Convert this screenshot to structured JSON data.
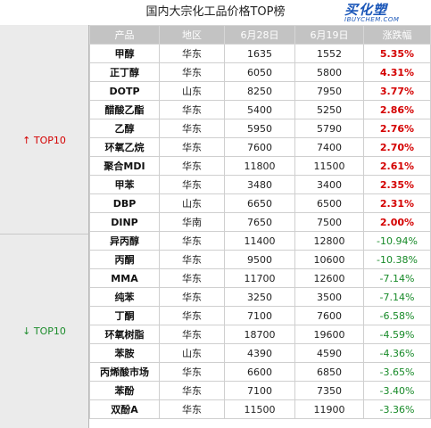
{
  "title": "国内大宗化工品价格TOP榜",
  "logo": {
    "main": "买化塑",
    "sub": "IBUYCHEM.COM"
  },
  "headers": [
    "产品",
    "地区",
    "6月28日",
    "6月19日",
    "涨跌幅"
  ],
  "groups": {
    "up_label": "TOP10",
    "up_arrow": "↑",
    "down_label": "TOP10",
    "down_arrow": "↓"
  },
  "up_rows": [
    {
      "product": "甲醇",
      "region": "华东",
      "p1": "1635",
      "p2": "1552",
      "change": "5.35%"
    },
    {
      "product": "正丁醇",
      "region": "华东",
      "p1": "6050",
      "p2": "5800",
      "change": "4.31%"
    },
    {
      "product": "DOTP",
      "region": "山东",
      "p1": "8250",
      "p2": "7950",
      "change": "3.77%"
    },
    {
      "product": "醋酸乙酯",
      "region": "华东",
      "p1": "5400",
      "p2": "5250",
      "change": "2.86%"
    },
    {
      "product": "乙醇",
      "region": "华东",
      "p1": "5950",
      "p2": "5790",
      "change": "2.76%"
    },
    {
      "product": "环氧乙烷",
      "region": "华东",
      "p1": "7600",
      "p2": "7400",
      "change": "2.70%"
    },
    {
      "product": "聚合MDI",
      "region": "华东",
      "p1": "11800",
      "p2": "11500",
      "change": "2.61%"
    },
    {
      "product": "甲苯",
      "region": "华东",
      "p1": "3480",
      "p2": "3400",
      "change": "2.35%"
    },
    {
      "product": "DBP",
      "region": "山东",
      "p1": "6650",
      "p2": "6500",
      "change": "2.31%"
    },
    {
      "product": "DINP",
      "region": "华南",
      "p1": "7650",
      "p2": "7500",
      "change": "2.00%"
    }
  ],
  "down_rows": [
    {
      "product": "异丙醇",
      "region": "华东",
      "p1": "11400",
      "p2": "12800",
      "change": "-10.94%"
    },
    {
      "product": "丙酮",
      "region": "华东",
      "p1": "9500",
      "p2": "10600",
      "change": "-10.38%"
    },
    {
      "product": "MMA",
      "region": "华东",
      "p1": "11700",
      "p2": "12600",
      "change": "-7.14%"
    },
    {
      "product": "纯苯",
      "region": "华东",
      "p1": "3250",
      "p2": "3500",
      "change": "-7.14%"
    },
    {
      "product": "丁酮",
      "region": "华东",
      "p1": "7100",
      "p2": "7600",
      "change": "-6.58%"
    },
    {
      "product": "环氧树脂",
      "region": "华东",
      "p1": "18700",
      "p2": "19600",
      "change": "-4.59%"
    },
    {
      "product": "苯胺",
      "region": "山东",
      "p1": "4390",
      "p2": "4590",
      "change": "-4.36%"
    },
    {
      "product": "丙烯酸市场",
      "region": "华东",
      "p1": "6600",
      "p2": "6850",
      "change": "-3.65%"
    },
    {
      "product": "苯酚",
      "region": "华东",
      "p1": "7100",
      "p2": "7350",
      "change": "-3.40%"
    },
    {
      "product": "双酚A",
      "region": "华东",
      "p1": "11500",
      "p2": "11900",
      "change": "-3.36%"
    }
  ]
}
